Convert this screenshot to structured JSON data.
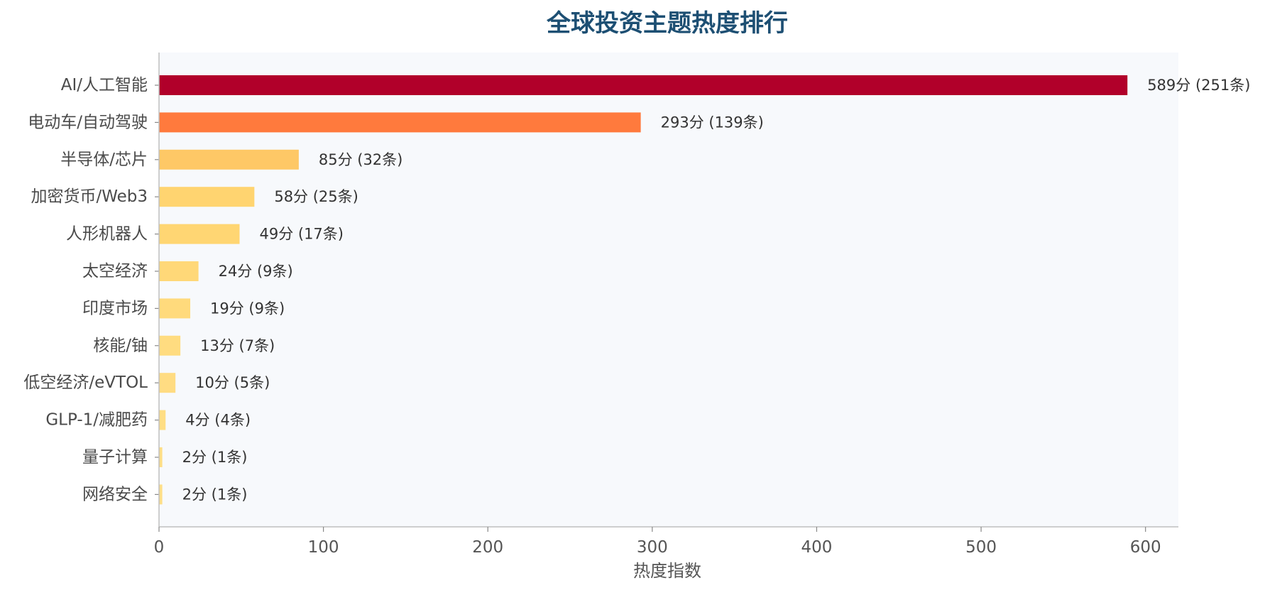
{
  "chart_data": {
    "type": "bar",
    "orientation": "horizontal",
    "title": "全球投资主题热度排行",
    "xlabel": "热度指数",
    "ylabel": "",
    "xlim": [
      0,
      620
    ],
    "xticks": [
      0,
      100,
      200,
      300,
      400,
      500,
      600
    ],
    "grid": false,
    "categories": [
      "AI/人工智能",
      "电动车/自动驾驶",
      "半导体/芯片",
      "加密货币/Web3",
      "人形机器人",
      "太空经济",
      "印度市场",
      "核能/铀",
      "低空经济/eVTOL",
      "GLP-1/减肥药",
      "量子计算",
      "网络安全"
    ],
    "values": [
      589,
      293,
      85,
      58,
      49,
      24,
      19,
      13,
      10,
      4,
      2,
      2
    ],
    "counts": [
      251,
      139,
      32,
      25,
      17,
      9,
      9,
      7,
      5,
      4,
      1,
      1
    ],
    "data_labels": [
      "589分 (251条)",
      "293分 (139条)",
      "85分 (32条)",
      "58分 (25条)",
      "49分 (17条)",
      "24分 (9条)",
      "19分 (9条)",
      "13分 (7条)",
      "10分 (5条)",
      "4分 (4条)",
      "2分 (1条)",
      "2分 (1条)"
    ],
    "colors": [
      "#b1002a",
      "#ff7a3d",
      "#fec866",
      "#ffd470",
      "#ffd673",
      "#ffd878",
      "#ffda7c",
      "#ffdc80",
      "#ffdc82",
      "#ffde84",
      "#ffde86",
      "#ffdf88"
    ],
    "plot_background": "#f7f9fc"
  }
}
